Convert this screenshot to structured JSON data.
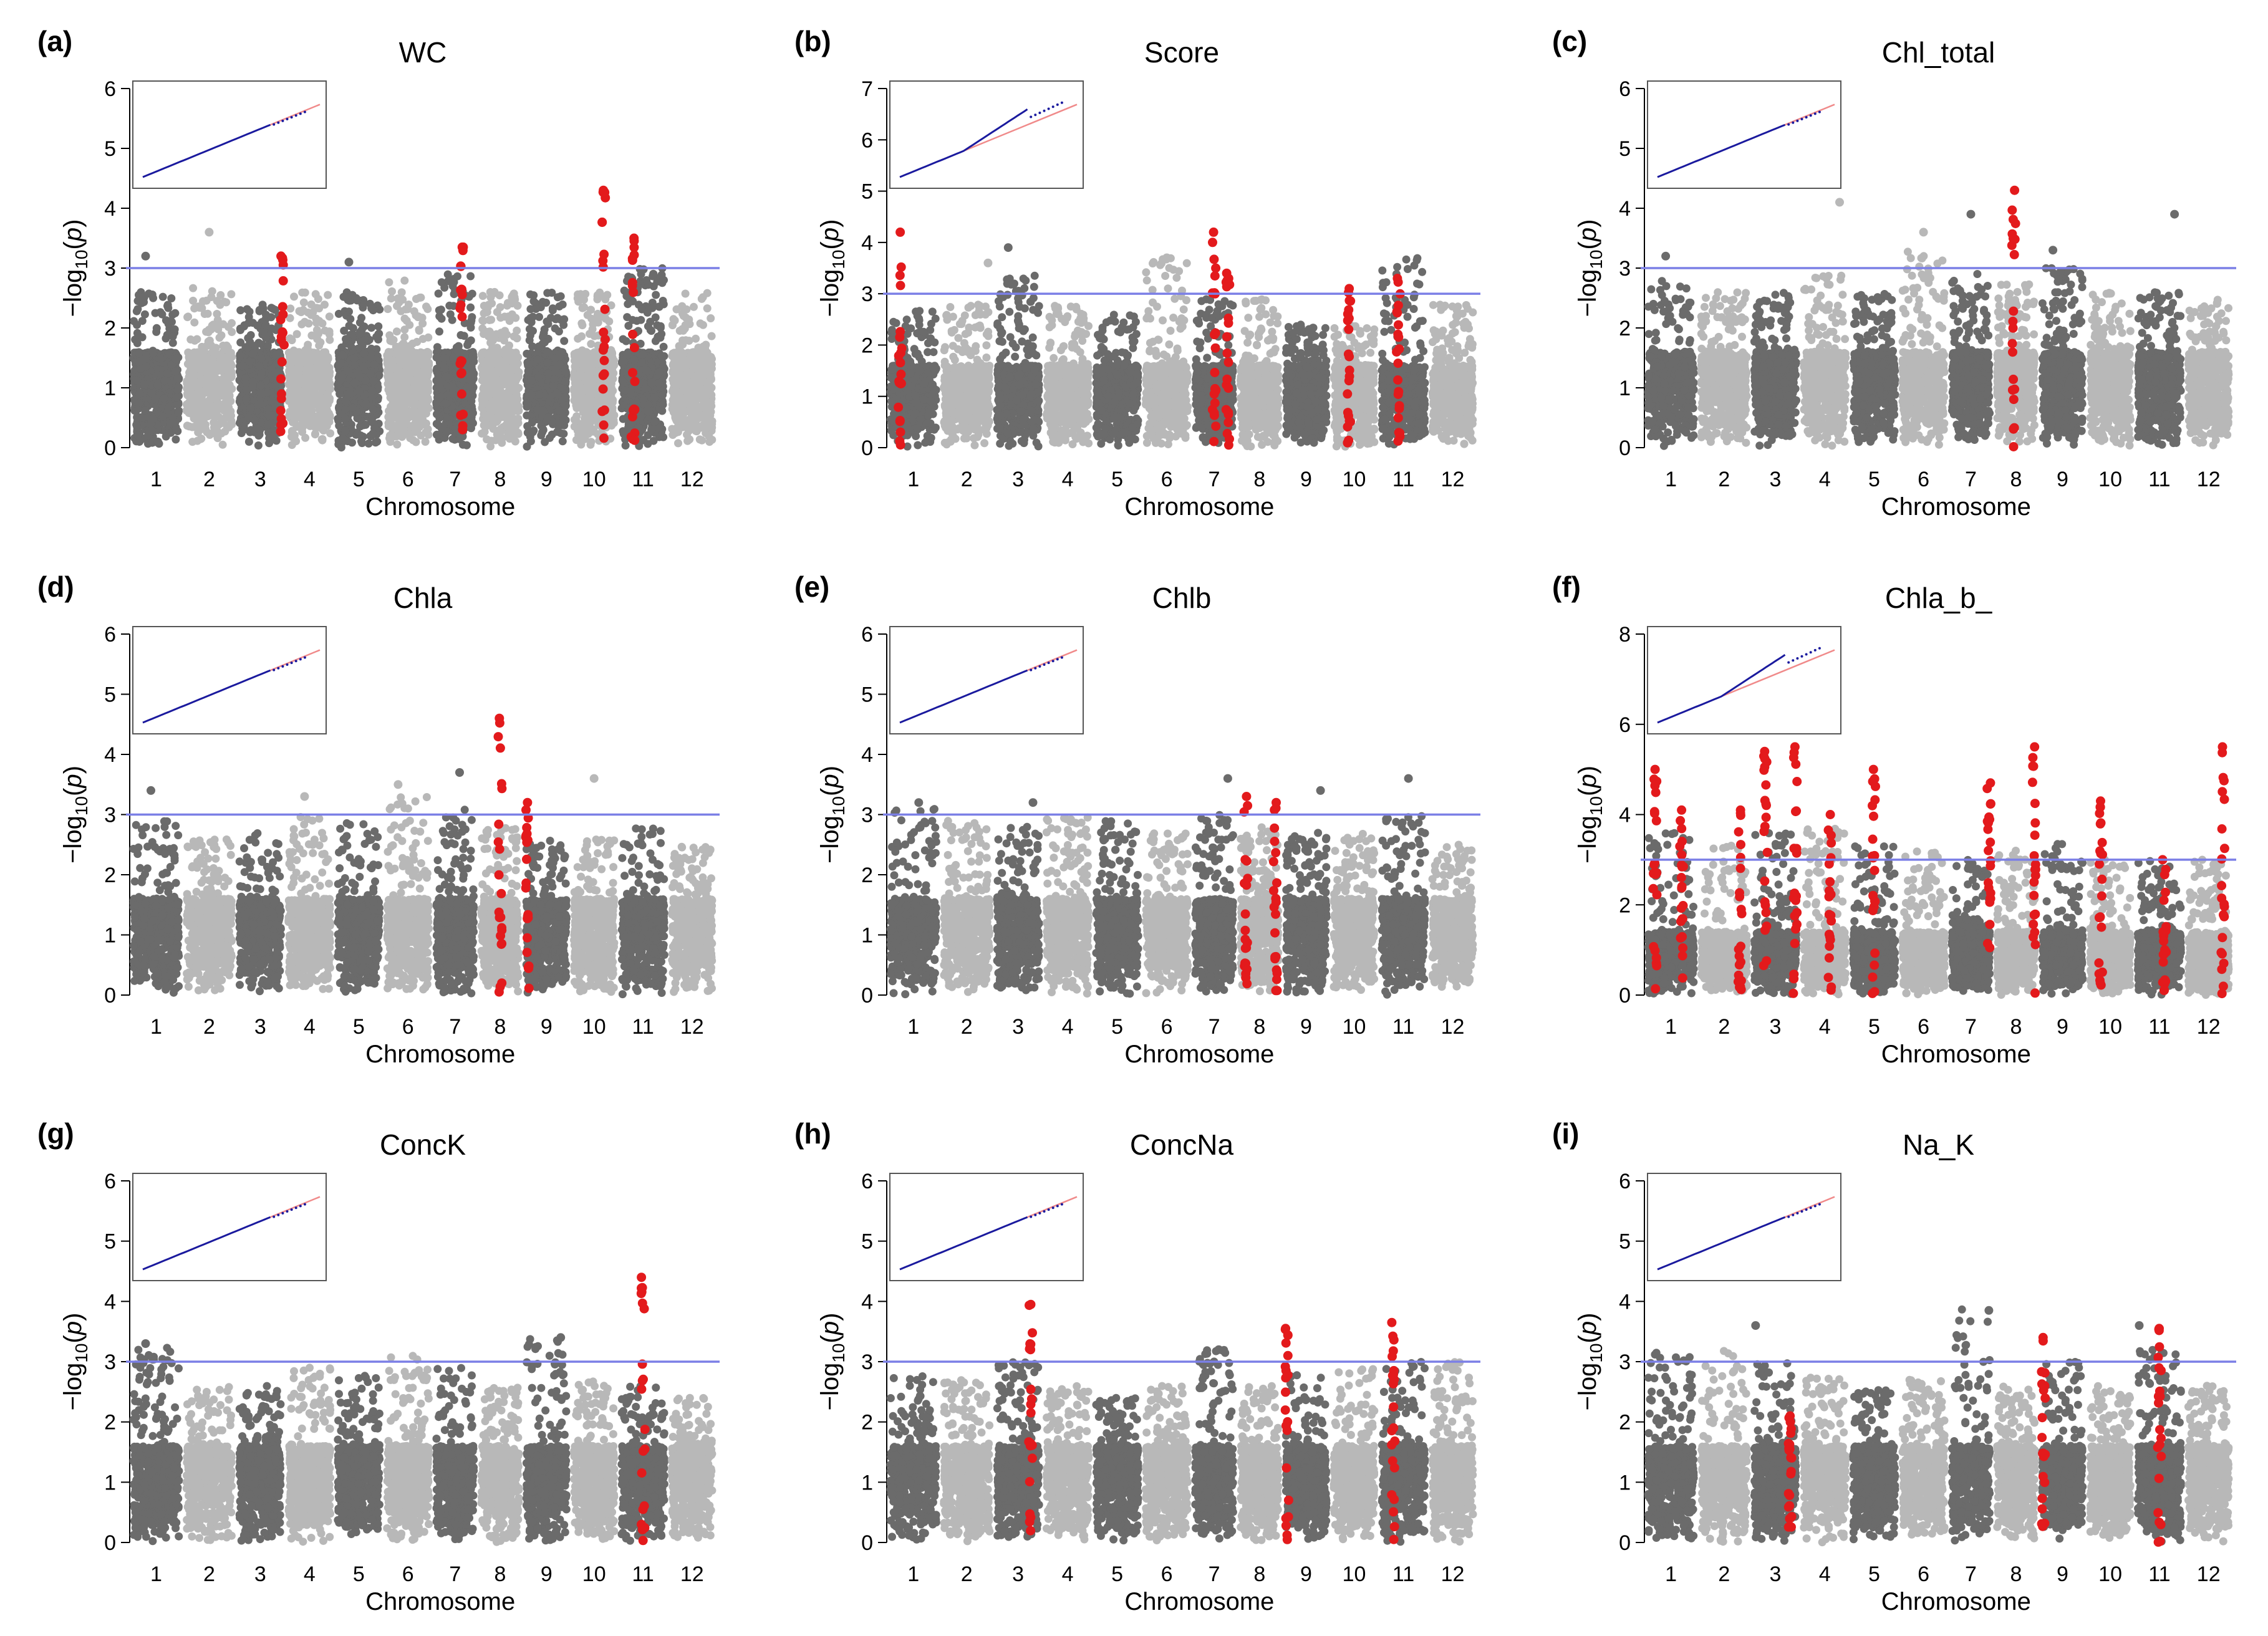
{
  "figure": {
    "chromosomes": [
      "1",
      "2",
      "3",
      "4",
      "5",
      "6",
      "7",
      "8",
      "9",
      "10",
      "11",
      "12"
    ],
    "colors": {
      "dark": "#6b6b6b",
      "light": "#b8b8b8",
      "highlight": "#e31a1c",
      "threshold": "#7b7fe6",
      "qq_expected": "#f08a8a",
      "qq_observed": "#1a1a9e"
    }
  },
  "chart_data": [
    {
      "id": "a",
      "letter": "(a)",
      "title": "WC",
      "type": "scatter",
      "subtype": "manhattan",
      "xlabel": "Chromosome",
      "ylabel": "-log10(p)",
      "ylim": [
        0,
        6
      ],
      "yticks": [
        0,
        1,
        2,
        3,
        4,
        5,
        6
      ],
      "threshold": 3,
      "base_peak": 1.6,
      "chr_noise": [
        2.6,
        2.7,
        2.4,
        2.6,
        2.6,
        2.8,
        3.0,
        2.6,
        2.6,
        2.6,
        3.0,
        2.6
      ],
      "highlight_columns": [
        {
          "chr": 3,
          "pos": 0.95,
          "max": 3.2
        },
        {
          "chr": 7,
          "pos": 0.65,
          "max": 3.35
        },
        {
          "chr": 10,
          "pos": 0.7,
          "max": 4.3
        },
        {
          "chr": 11,
          "pos": 0.3,
          "max": 3.5
        }
      ],
      "top_points": [
        {
          "chr": 1,
          "pos": 0.3,
          "value": 3.2
        },
        {
          "chr": 2,
          "pos": 0.5,
          "value": 3.6
        },
        {
          "chr": 5,
          "pos": 0.3,
          "value": 3.1
        }
      ],
      "qq": {
        "ymax": 5,
        "xmax": 4.5,
        "deviation": "slight"
      }
    },
    {
      "id": "b",
      "letter": "(b)",
      "title": "Score",
      "type": "scatter",
      "subtype": "manhattan",
      "xlabel": "Chromosome",
      "ylabel": "-log10(p)",
      "ylim": [
        0,
        7
      ],
      "yticks": [
        0,
        1,
        2,
        3,
        4,
        5,
        6,
        7
      ],
      "threshold": 3,
      "base_peak": 1.6,
      "chr_noise": [
        2.7,
        2.8,
        3.4,
        2.8,
        2.6,
        3.7,
        2.9,
        2.9,
        2.4,
        2.4,
        3.7,
        2.8
      ],
      "highlight_columns": [
        {
          "chr": 1,
          "pos": 0.25,
          "max": 4.2
        },
        {
          "chr": 7,
          "pos": 0.5,
          "max": 4.2
        },
        {
          "chr": 7,
          "pos": 0.8,
          "max": 3.4
        },
        {
          "chr": 10,
          "pos": 0.4,
          "max": 3.1
        },
        {
          "chr": 11,
          "pos": 0.4,
          "max": 3.3
        }
      ],
      "top_points": [
        {
          "chr": 2,
          "pos": 0.9,
          "value": 3.6
        },
        {
          "chr": 3,
          "pos": 0.3,
          "value": 3.9
        },
        {
          "chr": 6,
          "pos": 0.5,
          "value": 3.7
        }
      ],
      "qq": {
        "ymax": 5,
        "xmax": 4.5,
        "deviation": "up"
      }
    },
    {
      "id": "c",
      "letter": "(c)",
      "title": "Chl_total",
      "type": "scatter",
      "subtype": "manhattan",
      "xlabel": "Chromosome",
      "ylabel": "-log10(p)",
      "ylim": [
        0,
        6
      ],
      "yticks": [
        0,
        1,
        2,
        3,
        4,
        5,
        6
      ],
      "threshold": 3,
      "base_peak": 1.6,
      "chr_noise": [
        2.8,
        2.6,
        2.6,
        2.9,
        2.6,
        3.3,
        3.0,
        2.8,
        3.0,
        2.6,
        2.6,
        2.5
      ],
      "highlight_columns": [
        {
          "chr": 8,
          "pos": 0.45,
          "max": 4.3
        }
      ],
      "top_points": [
        {
          "chr": 1,
          "pos": 0.4,
          "value": 3.2
        },
        {
          "chr": 4,
          "pos": 0.8,
          "value": 4.1
        },
        {
          "chr": 6,
          "pos": 0.5,
          "value": 3.6
        },
        {
          "chr": 7,
          "pos": 0.5,
          "value": 3.9
        },
        {
          "chr": 9,
          "pos": 0.3,
          "value": 3.3
        },
        {
          "chr": 11,
          "pos": 0.8,
          "value": 3.9
        }
      ],
      "qq": {
        "ymax": 5,
        "xmax": 4.5,
        "deviation": "slight"
      }
    },
    {
      "id": "d",
      "letter": "(d)",
      "title": "Chla",
      "type": "scatter",
      "subtype": "manhattan",
      "xlabel": "Chromosome",
      "ylabel": "-log10(p)",
      "ylim": [
        0,
        6
      ],
      "yticks": [
        0,
        1,
        2,
        3,
        4,
        5,
        6
      ],
      "threshold": 3,
      "base_peak": 1.6,
      "chr_noise": [
        2.9,
        2.6,
        2.7,
        3.0,
        2.9,
        3.3,
        3.1,
        2.8,
        2.6,
        2.6,
        2.8,
        2.5
      ],
      "highlight_columns": [
        {
          "chr": 8,
          "pos": 0.5,
          "max": 4.6
        },
        {
          "chr": 9,
          "pos": 0.1,
          "max": 3.2
        }
      ],
      "top_points": [
        {
          "chr": 1,
          "pos": 0.4,
          "value": 3.4
        },
        {
          "chr": 4,
          "pos": 0.4,
          "value": 3.3
        },
        {
          "chr": 6,
          "pos": 0.3,
          "value": 3.5
        },
        {
          "chr": 7,
          "pos": 0.6,
          "value": 3.7
        },
        {
          "chr": 10,
          "pos": 0.5,
          "value": 3.6
        }
      ],
      "qq": {
        "ymax": 5,
        "xmax": 4.5,
        "deviation": "slight"
      }
    },
    {
      "id": "e",
      "letter": "(e)",
      "title": "Chlb",
      "type": "scatter",
      "subtype": "manhattan",
      "xlabel": "Chromosome",
      "ylabel": "-log10(p)",
      "ylim": [
        0,
        6
      ],
      "yticks": [
        0,
        1,
        2,
        3,
        4,
        5,
        6
      ],
      "threshold": 3,
      "base_peak": 1.6,
      "chr_noise": [
        3.1,
        2.9,
        2.8,
        3.0,
        2.9,
        2.7,
        3.0,
        2.8,
        2.7,
        2.7,
        3.0,
        2.5
      ],
      "highlight_columns": [
        {
          "chr": 8,
          "pos": 0.2,
          "max": 3.3
        },
        {
          "chr": 8,
          "pos": 0.85,
          "max": 3.2
        }
      ],
      "top_points": [
        {
          "chr": 1,
          "pos": 0.6,
          "value": 3.2
        },
        {
          "chr": 3,
          "pos": 0.8,
          "value": 3.2
        },
        {
          "chr": 7,
          "pos": 0.8,
          "value": 3.6
        },
        {
          "chr": 9,
          "pos": 0.8,
          "value": 3.4
        },
        {
          "chr": 11,
          "pos": 0.6,
          "value": 3.6
        }
      ],
      "qq": {
        "ymax": 5,
        "xmax": 4.5,
        "deviation": "slight"
      }
    },
    {
      "id": "f",
      "letter": "(f)",
      "title": "Chla_b_",
      "type": "scatter",
      "subtype": "manhattan",
      "xlabel": "Chromosome",
      "ylabel": "-log10(p)",
      "ylim": [
        0,
        8
      ],
      "yticks": [
        0,
        2,
        4,
        6,
        8
      ],
      "threshold": 3,
      "base_peak": 1.4,
      "chr_noise": [
        3.6,
        3.4,
        3.6,
        3.7,
        3.3,
        3.2,
        3.0,
        3.2,
        3.4,
        3.0,
        3.0,
        3.0
      ],
      "highlight_columns": [
        {
          "chr": 1,
          "pos": 0.2,
          "max": 5.0
        },
        {
          "chr": 1,
          "pos": 0.7,
          "max": 4.1
        },
        {
          "chr": 2,
          "pos": 0.8,
          "max": 4.1
        },
        {
          "chr": 3,
          "pos": 0.3,
          "max": 5.4
        },
        {
          "chr": 3,
          "pos": 0.9,
          "max": 5.5
        },
        {
          "chr": 4,
          "pos": 0.6,
          "max": 4.0
        },
        {
          "chr": 5,
          "pos": 0.5,
          "max": 5.0
        },
        {
          "chr": 7,
          "pos": 0.9,
          "max": 4.7
        },
        {
          "chr": 8,
          "pos": 0.9,
          "max": 5.5
        },
        {
          "chr": 10,
          "pos": 0.3,
          "max": 4.3
        },
        {
          "chr": 11,
          "pos": 0.6,
          "max": 3.0
        },
        {
          "chr": 12,
          "pos": 0.8,
          "max": 5.5
        }
      ],
      "top_points": [],
      "qq": {
        "ymax": 5,
        "xmax": 4.5,
        "deviation": "up"
      }
    },
    {
      "id": "g",
      "letter": "(g)",
      "title": "ConcK",
      "type": "scatter",
      "subtype": "manhattan",
      "xlabel": "Chromosome",
      "ylabel": "-log10(p)",
      "ylim": [
        0,
        6
      ],
      "yticks": [
        0,
        1,
        2,
        3,
        4,
        5,
        6
      ],
      "threshold": 3,
      "base_peak": 1.6,
      "chr_noise": [
        3.3,
        2.6,
        2.6,
        2.9,
        2.8,
        3.1,
        2.9,
        2.6,
        3.4,
        2.7,
        2.6,
        2.4
      ],
      "highlight_columns": [
        {
          "chr": 11,
          "pos": 0.5,
          "max": 4.4
        }
      ],
      "top_points": [
        {
          "chr": 1,
          "pos": 0.3,
          "value": 3.3
        },
        {
          "chr": 9,
          "pos": 0.8,
          "value": 3.4
        }
      ],
      "qq": {
        "ymax": 5,
        "xmax": 4.5,
        "deviation": "slight"
      }
    },
    {
      "id": "h",
      "letter": "(h)",
      "title": "ConcNa",
      "type": "scatter",
      "subtype": "manhattan",
      "xlabel": "Chromosome",
      "ylabel": "-log10(p)",
      "ylim": [
        0,
        6
      ],
      "yticks": [
        0,
        1,
        2,
        3,
        4,
        5,
        6
      ],
      "threshold": 3,
      "base_peak": 1.6,
      "chr_noise": [
        2.8,
        2.7,
        3.0,
        2.6,
        2.4,
        2.6,
        3.2,
        2.6,
        2.8,
        2.9,
        3.0,
        3.0
      ],
      "highlight_columns": [
        {
          "chr": 3,
          "pos": 0.75,
          "max": 3.95
        },
        {
          "chr": 9,
          "pos": 0.1,
          "max": 3.55
        },
        {
          "chr": 11,
          "pos": 0.3,
          "max": 3.65
        }
      ],
      "top_points": [
        {
          "chr": 7,
          "pos": 0.6,
          "value": 3.2
        }
      ],
      "qq": {
        "ymax": 5,
        "xmax": 4.5,
        "deviation": "slight"
      }
    },
    {
      "id": "i",
      "letter": "(i)",
      "title": "Na_K",
      "type": "scatter",
      "subtype": "manhattan",
      "xlabel": "Chromosome",
      "ylabel": "-log10(p)",
      "ylim": [
        0,
        6
      ],
      "yticks": [
        0,
        1,
        2,
        3,
        4,
        5,
        6
      ],
      "threshold": 3,
      "base_peak": 1.6,
      "chr_noise": [
        3.2,
        3.2,
        3.0,
        2.8,
        2.6,
        2.7,
        3.9,
        2.6,
        3.0,
        2.6,
        3.2,
        2.6
      ],
      "highlight_columns": [
        {
          "chr": 3,
          "pos": 0.8,
          "max": 2.1
        },
        {
          "chr": 9,
          "pos": 0.1,
          "max": 3.4
        },
        {
          "chr": 11,
          "pos": 0.5,
          "max": 3.55
        }
      ],
      "top_points": [
        {
          "chr": 3,
          "pos": 0.1,
          "value": 3.6
        },
        {
          "chr": 7,
          "pos": 0.9,
          "value": 3.85
        },
        {
          "chr": 11,
          "pos": 0.1,
          "value": 3.6
        }
      ],
      "qq": {
        "ymax": 5,
        "xmax": 4.5,
        "deviation": "slight"
      }
    }
  ]
}
